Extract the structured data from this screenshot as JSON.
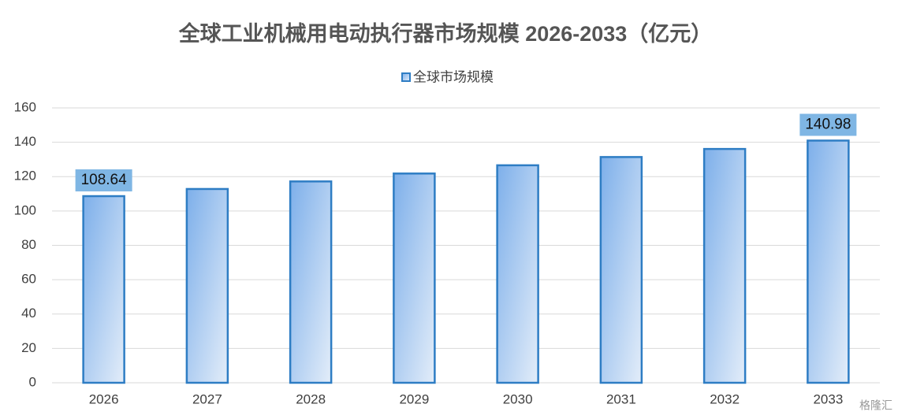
{
  "chart_data": {
    "type": "bar",
    "title": "全球工业机械用电动执行器市场规模 2026-2033（亿元）",
    "categories": [
      "2026",
      "2027",
      "2028",
      "2029",
      "2030",
      "2031",
      "2032",
      "2033"
    ],
    "series": [
      {
        "name": "全球市场规模",
        "color": "#2e7dc4",
        "values": [
          108.64,
          112.8,
          117.2,
          121.8,
          126.6,
          131.4,
          136.1,
          140.98
        ],
        "value_labels": [
          "108.64",
          null,
          null,
          null,
          null,
          null,
          null,
          "140.98"
        ]
      }
    ],
    "ylim": [
      0,
      160
    ],
    "yticks": [
      0,
      20,
      40,
      60,
      80,
      100,
      120,
      140,
      160
    ],
    "grid": true,
    "legend": "top",
    "watermark": "格隆汇"
  }
}
